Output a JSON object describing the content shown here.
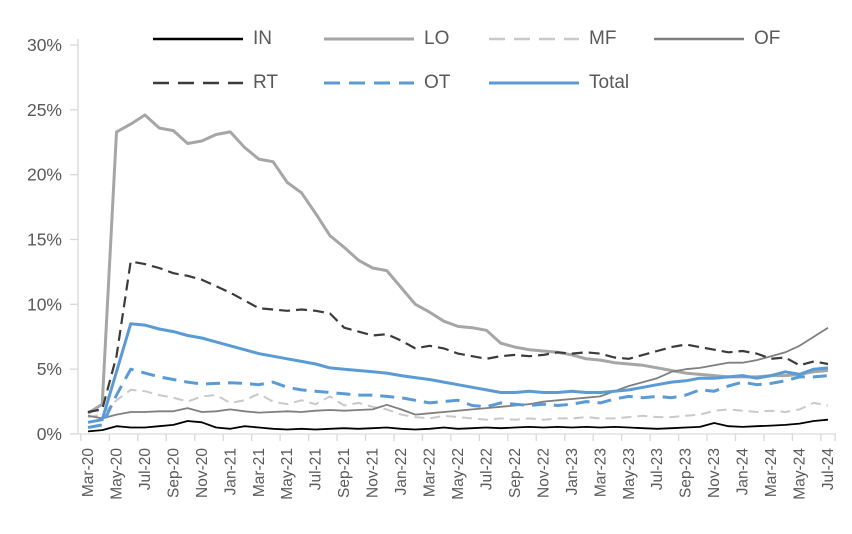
{
  "chart_data": {
    "type": "line",
    "title": "",
    "xlabel": "",
    "ylabel": "",
    "ylim": [
      0,
      30
    ],
    "grid": false,
    "legend_position": "top",
    "y_tick_labels": [
      "0%",
      "5%",
      "10%",
      "15%",
      "20%",
      "25%",
      "30%"
    ],
    "x_tick_labels_shown": [
      "Mar-20",
      "May-20",
      "Jul-20",
      "Sep-20",
      "Nov-20",
      "Jan-21",
      "Mar-21",
      "May-21",
      "Jul-21",
      "Sep-21",
      "Nov-21",
      "Jan-22",
      "Mar-22",
      "May-22",
      "Jul-22",
      "Sep-22",
      "Nov-22",
      "Jan-23",
      "Mar-23",
      "May-23",
      "Jul-23",
      "Sep-23",
      "Nov-23",
      "Jan-24",
      "Mar-24",
      "May-24",
      "Jul-24"
    ],
    "x": [
      "Mar-20",
      "Apr-20",
      "May-20",
      "Jun-20",
      "Jul-20",
      "Aug-20",
      "Sep-20",
      "Oct-20",
      "Nov-20",
      "Dec-20",
      "Jan-21",
      "Feb-21",
      "Mar-21",
      "Apr-21",
      "May-21",
      "Jun-21",
      "Jul-21",
      "Aug-21",
      "Sep-21",
      "Oct-21",
      "Nov-21",
      "Dec-21",
      "Jan-22",
      "Feb-22",
      "Mar-22",
      "Apr-22",
      "May-22",
      "Jun-22",
      "Jul-22",
      "Aug-22",
      "Sep-22",
      "Oct-22",
      "Nov-22",
      "Dec-22",
      "Jan-23",
      "Feb-23",
      "Mar-23",
      "Apr-23",
      "May-23",
      "Jun-23",
      "Jul-23",
      "Aug-23",
      "Sep-23",
      "Oct-23",
      "Nov-23",
      "Dec-23",
      "Jan-24",
      "Feb-24",
      "Mar-24",
      "Apr-24",
      "May-24",
      "Jun-24",
      "Jul-24"
    ],
    "series": [
      {
        "name": "IN",
        "color": "#000000",
        "dashed": false,
        "width": 1.8,
        "values": [
          0.2,
          0.3,
          0.6,
          0.5,
          0.5,
          0.6,
          0.7,
          1.0,
          0.9,
          0.5,
          0.4,
          0.6,
          0.5,
          0.4,
          0.35,
          0.4,
          0.35,
          0.4,
          0.45,
          0.4,
          0.45,
          0.5,
          0.4,
          0.35,
          0.4,
          0.5,
          0.4,
          0.45,
          0.5,
          0.45,
          0.5,
          0.55,
          0.5,
          0.55,
          0.5,
          0.55,
          0.5,
          0.55,
          0.5,
          0.45,
          0.4,
          0.45,
          0.5,
          0.55,
          0.85,
          0.6,
          0.55,
          0.6,
          0.65,
          0.7,
          0.8,
          1.0,
          1.1
        ]
      },
      {
        "name": "LO",
        "color": "#a6a6a6",
        "dashed": false,
        "width": 3,
        "values": [
          1.6,
          2.3,
          23.3,
          23.9,
          24.6,
          23.6,
          23.4,
          22.4,
          22.6,
          23.1,
          23.3,
          22.1,
          21.2,
          21.0,
          19.4,
          18.6,
          17.0,
          15.3,
          14.4,
          13.4,
          12.8,
          12.6,
          11.3,
          10.0,
          9.4,
          8.7,
          8.3,
          8.2,
          8.0,
          7.0,
          6.7,
          6.5,
          6.4,
          6.3,
          6.1,
          5.8,
          5.7,
          5.5,
          5.4,
          5.3,
          5.1,
          4.9,
          4.7,
          4.6,
          4.5,
          4.4,
          4.4,
          4.4,
          4.5,
          4.5,
          4.6,
          4.8,
          4.9
        ]
      },
      {
        "name": "MF",
        "color": "#c9c9c9",
        "dashed": true,
        "width": 2,
        "values": [
          1.3,
          1.5,
          2.6,
          3.4,
          3.3,
          3.0,
          2.8,
          2.5,
          2.9,
          3.0,
          2.4,
          2.6,
          3.1,
          2.5,
          2.3,
          2.6,
          2.3,
          2.9,
          2.2,
          2.4,
          2.1,
          1.9,
          1.5,
          1.3,
          1.2,
          1.4,
          1.3,
          1.2,
          1.1,
          1.2,
          1.1,
          1.2,
          1.1,
          1.2,
          1.2,
          1.3,
          1.2,
          1.2,
          1.3,
          1.4,
          1.3,
          1.3,
          1.4,
          1.5,
          1.8,
          1.9,
          1.8,
          1.7,
          1.8,
          1.7,
          1.9,
          2.4,
          2.2
        ]
      },
      {
        "name": "OF",
        "color": "#7f7f7f",
        "dashed": false,
        "width": 1.8,
        "values": [
          1.4,
          1.2,
          1.5,
          1.7,
          1.7,
          1.75,
          1.75,
          2.0,
          1.7,
          1.75,
          1.9,
          1.75,
          1.65,
          1.7,
          1.75,
          1.7,
          1.8,
          1.85,
          1.8,
          1.85,
          1.9,
          2.25,
          1.9,
          1.5,
          1.6,
          1.7,
          1.8,
          1.9,
          2.0,
          2.1,
          2.2,
          2.3,
          2.5,
          2.6,
          2.7,
          2.8,
          2.9,
          3.3,
          3.7,
          4.0,
          4.3,
          4.8,
          5.0,
          5.1,
          5.3,
          5.5,
          5.5,
          5.7,
          6.0,
          6.3,
          6.8,
          7.5,
          8.2
        ]
      },
      {
        "name": "RT",
        "color": "#3b3b3b",
        "dashed": true,
        "width": 2.2,
        "values": [
          1.7,
          1.9,
          6.0,
          13.3,
          13.1,
          12.8,
          12.4,
          12.2,
          11.9,
          11.4,
          10.9,
          10.3,
          9.7,
          9.6,
          9.5,
          9.6,
          9.5,
          9.3,
          8.2,
          7.9,
          7.6,
          7.7,
          7.2,
          6.6,
          6.8,
          6.6,
          6.2,
          6.0,
          5.8,
          6.0,
          6.1,
          6.0,
          6.1,
          6.3,
          6.2,
          6.3,
          6.2,
          5.9,
          5.8,
          6.1,
          6.4,
          6.7,
          6.9,
          6.7,
          6.5,
          6.3,
          6.4,
          6.2,
          5.8,
          5.9,
          5.3,
          5.6,
          5.4
        ]
      },
      {
        "name": "OT",
        "color": "#5b9bd5",
        "dashed": true,
        "width": 3,
        "values": [
          0.5,
          0.7,
          3.0,
          5.0,
          4.7,
          4.4,
          4.2,
          4.0,
          3.85,
          3.9,
          3.95,
          3.9,
          3.8,
          4.0,
          3.6,
          3.4,
          3.3,
          3.2,
          3.1,
          3.0,
          3.0,
          2.9,
          2.8,
          2.6,
          2.4,
          2.5,
          2.6,
          2.2,
          2.1,
          2.4,
          2.3,
          2.2,
          2.3,
          2.2,
          2.3,
          2.5,
          2.4,
          2.7,
          2.9,
          2.8,
          2.9,
          2.8,
          3.0,
          3.4,
          3.3,
          3.7,
          4.0,
          3.8,
          3.9,
          4.1,
          4.4,
          4.4,
          4.5
        ]
      },
      {
        "name": "Total",
        "color": "#5b9bd5",
        "dashed": false,
        "width": 3,
        "values": [
          0.9,
          1.1,
          4.8,
          8.5,
          8.4,
          8.1,
          7.9,
          7.6,
          7.4,
          7.1,
          6.8,
          6.5,
          6.2,
          6.0,
          5.8,
          5.6,
          5.4,
          5.1,
          5.0,
          4.9,
          4.8,
          4.7,
          4.5,
          4.35,
          4.2,
          4.0,
          3.8,
          3.6,
          3.4,
          3.2,
          3.2,
          3.3,
          3.2,
          3.2,
          3.3,
          3.2,
          3.2,
          3.3,
          3.4,
          3.6,
          3.8,
          4.0,
          4.1,
          4.3,
          4.3,
          4.4,
          4.5,
          4.3,
          4.5,
          4.8,
          4.6,
          5.0,
          5.1
        ]
      }
    ]
  },
  "legend": {
    "items": [
      {
        "label": "IN"
      },
      {
        "label": "LO"
      },
      {
        "label": "MF"
      },
      {
        "label": "OF"
      },
      {
        "label": "RT"
      },
      {
        "label": "OT"
      },
      {
        "label": "Total"
      }
    ]
  },
  "colors": {
    "axis_line": "#d9d9d9",
    "tick_label": "#595959",
    "legend_text": "#595959",
    "accent_blue": "#5b9bd5"
  }
}
